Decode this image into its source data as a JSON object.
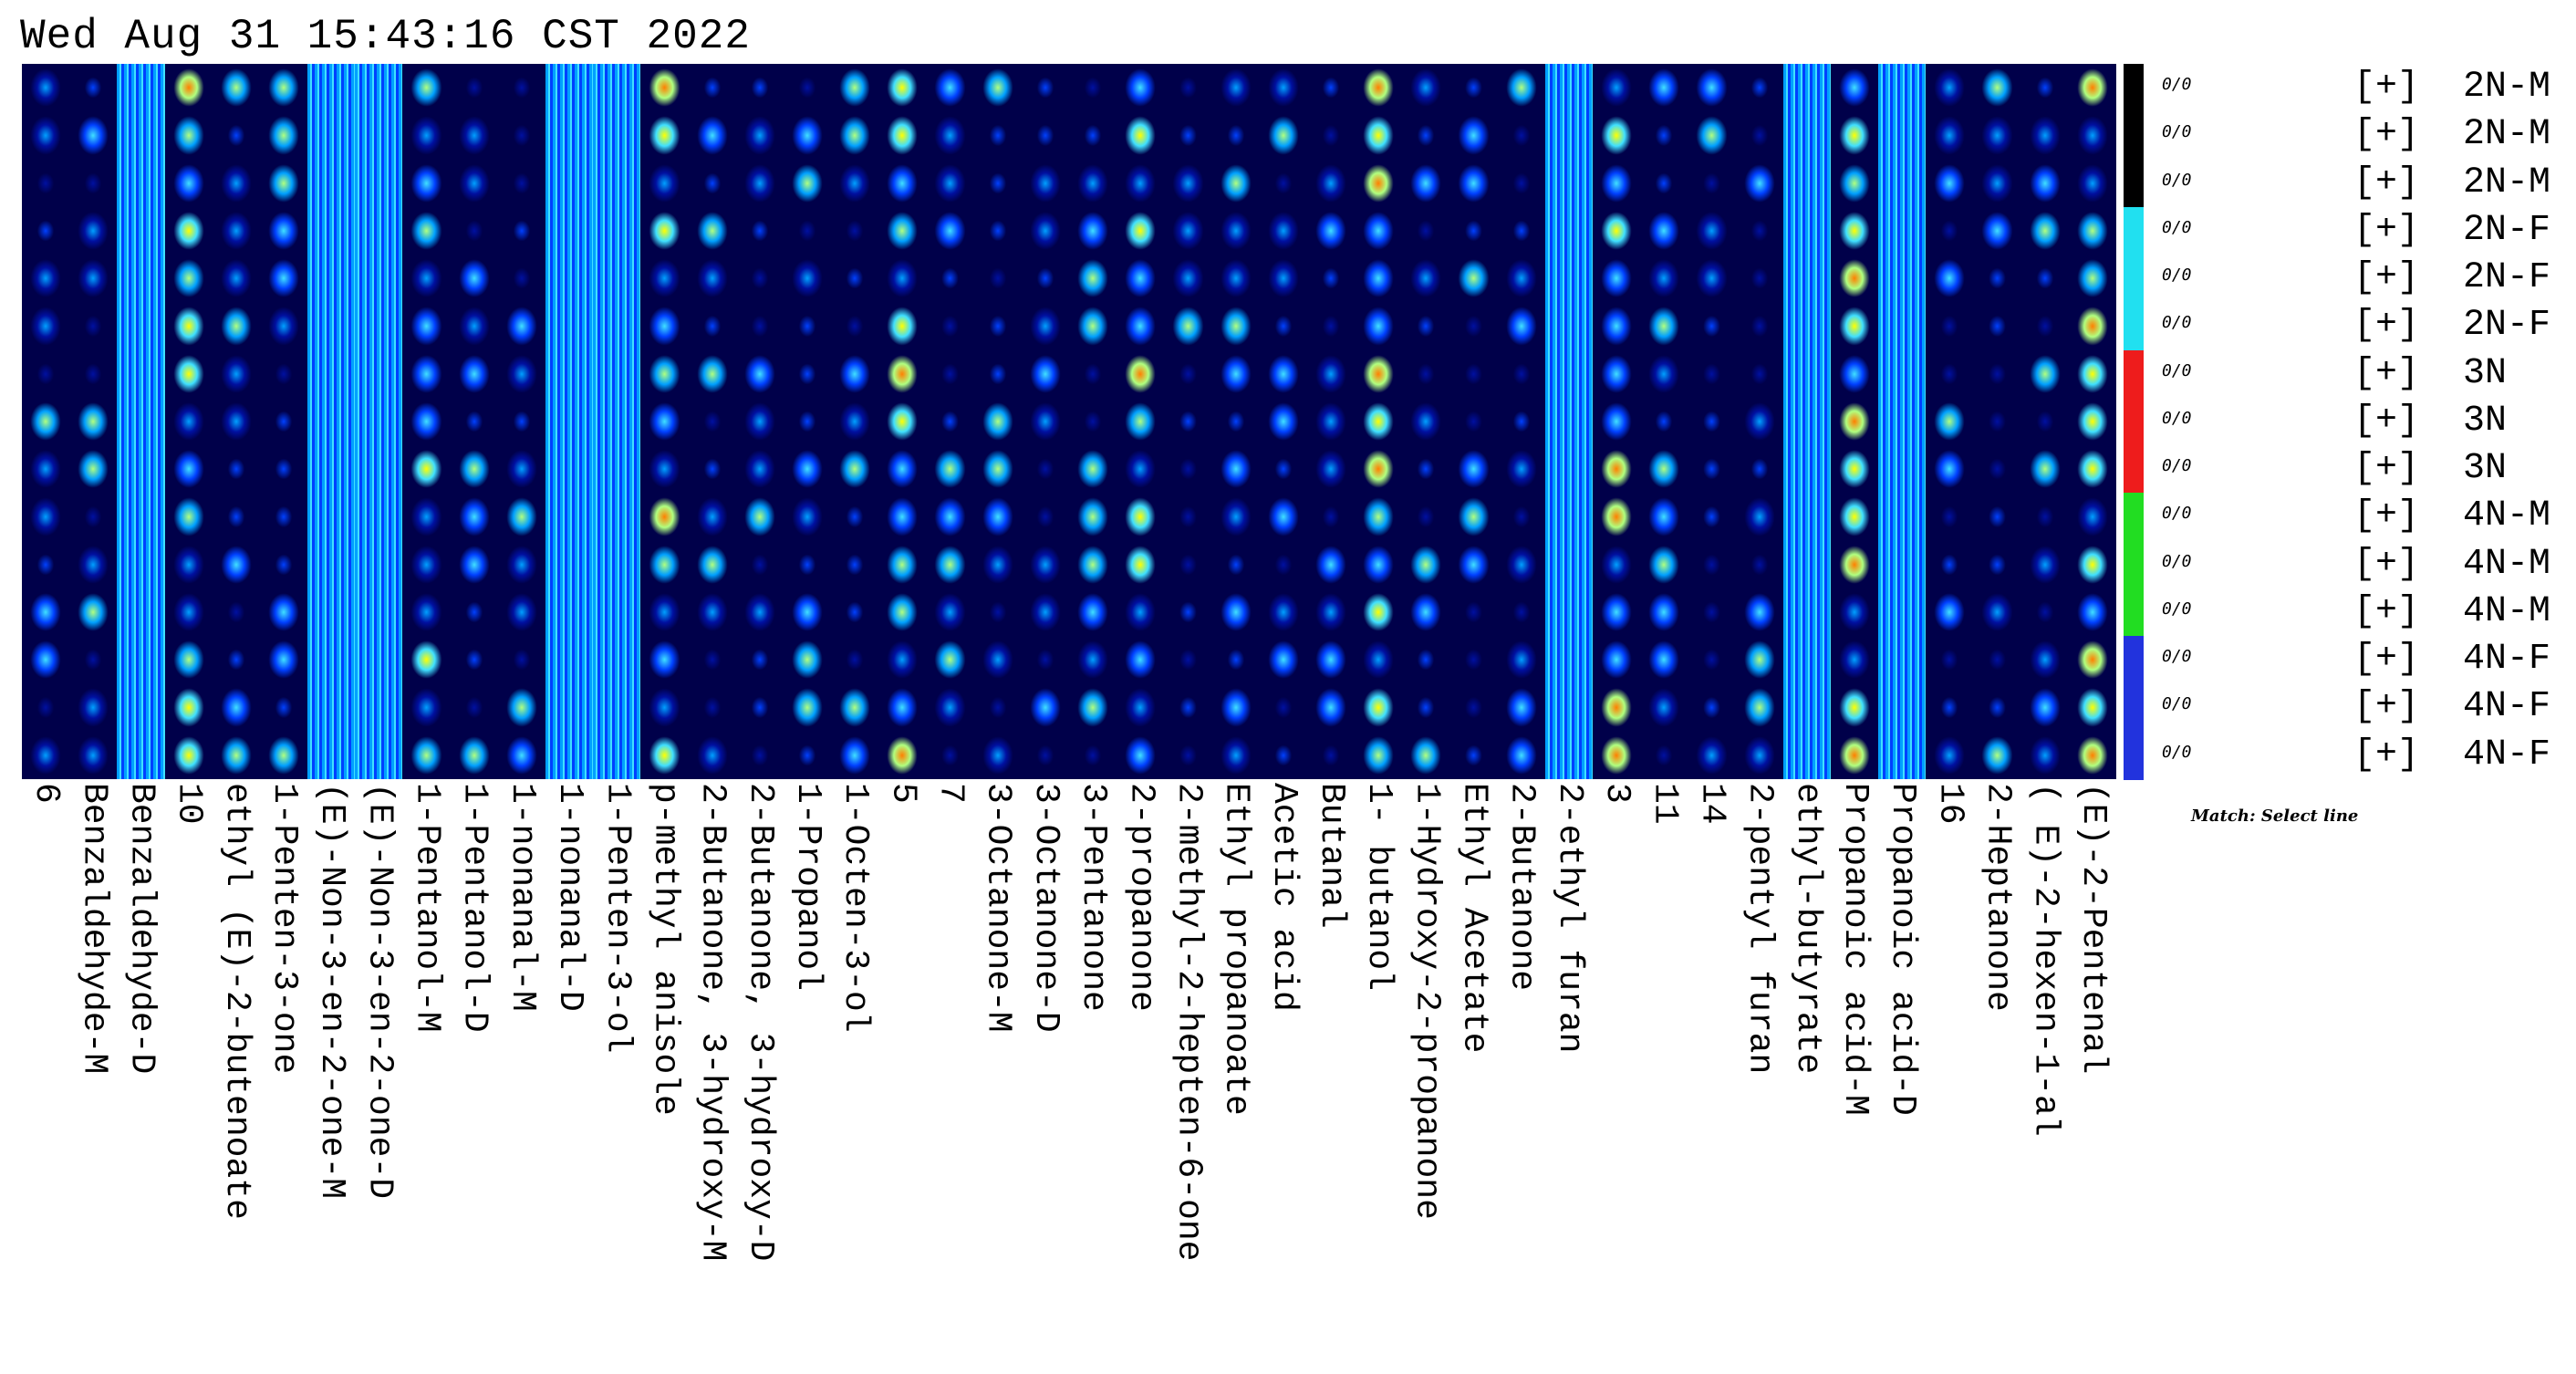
{
  "timestamp": "Wed Aug 31 15:43:16 CST 2022",
  "hint": "Match: Select line",
  "row_marker": "0/0",
  "rows": [
    {
      "expand": "[+]",
      "label": "2N-M",
      "group_color": "#000000"
    },
    {
      "expand": "[+]",
      "label": "2N-M",
      "group_color": "#000000"
    },
    {
      "expand": "[+]",
      "label": "2N-M",
      "group_color": "#000000"
    },
    {
      "expand": "[+]",
      "label": "2N-F",
      "group_color": "#21e0f0"
    },
    {
      "expand": "[+]",
      "label": "2N-F",
      "group_color": "#21e0f0"
    },
    {
      "expand": "[+]",
      "label": "2N-F",
      "group_color": "#21e0f0"
    },
    {
      "expand": "[+]",
      "label": "3N",
      "group_color": "#ee1c1c"
    },
    {
      "expand": "[+]",
      "label": "3N",
      "group_color": "#ee1c1c"
    },
    {
      "expand": "[+]",
      "label": "3N",
      "group_color": "#ee1c1c"
    },
    {
      "expand": "[+]",
      "label": "4N-M",
      "group_color": "#22dd22"
    },
    {
      "expand": "[+]",
      "label": "4N-M",
      "group_color": "#22dd22"
    },
    {
      "expand": "[+]",
      "label": "4N-M",
      "group_color": "#22dd22"
    },
    {
      "expand": "[+]",
      "label": "4N-F",
      "group_color": "#2233dd"
    },
    {
      "expand": "[+]",
      "label": "4N-F",
      "group_color": "#2233dd"
    },
    {
      "expand": "[+]",
      "label": "4N-F",
      "group_color": "#2233dd"
    }
  ],
  "columns": [
    "6",
    "Benzaldehyde-M",
    "Benzaldehyde-D",
    "10",
    "ethyl (E)-2-butenoate",
    "1-Penten-3-one",
    "(E)-Non-3-en-2-one-M",
    "(E)-Non-3-en-2-one-D",
    "1-Pentanol-M",
    "1-Pentanol-D",
    "1-nonanal-M",
    "1-nonanal-D",
    "1-Penten-3-ol",
    "p-methyl anisole",
    "2-Butanone, 3-hydroxy-M",
    "2-Butanone, 3-hydroxy-D",
    "1-Propanol",
    "1-Octen-3-ol",
    "5",
    "7",
    "3-Octanone-M",
    "3-Octanone-D",
    "3-Pentanone",
    "2-propanone",
    "2-methyl-2-hepten-6-one",
    "Ethyl propanoate",
    "Acetic acid",
    "Butanal",
    "1- butanol",
    "1-Hydroxy-2-propanone",
    "Ethyl Acetate",
    "2-Butanone",
    "2-ethyl furan",
    "3",
    "11",
    "14",
    "2-pentyl furan",
    "ethyl-butyrate",
    "Propanoic acid-M",
    "Propanoic acid-D",
    "16",
    "2-Heptanone",
    "( E)-2-hexen-1-al",
    "(E)-2-Pentenal"
  ],
  "colorscale": [
    "#00004a",
    "#0010a0",
    "#0040ff",
    "#00a0ff",
    "#40e0ff",
    "#b0ff80",
    "#ffff00",
    "#ff8000",
    "#ff0000"
  ]
}
